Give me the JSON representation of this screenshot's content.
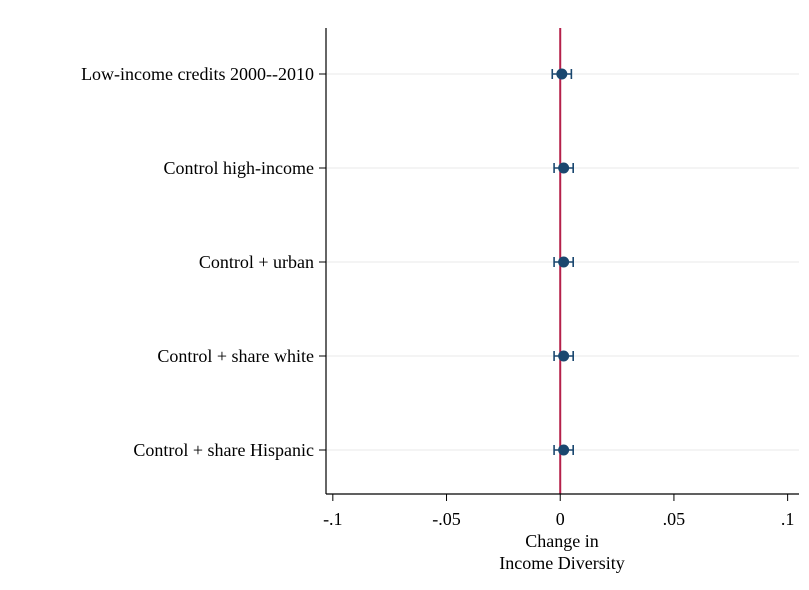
{
  "chart_data": {
    "type": "scatter",
    "orientation": "horizontal coefficient plot",
    "categories": [
      "Low-income credits 2000--2010",
      "Control high-income",
      "Control + urban",
      "Control + share white",
      "Control + share Hispanic"
    ],
    "estimates": [
      0.0007,
      0.0015,
      0.0015,
      0.0015,
      0.0015
    ],
    "ci_low": [
      -0.0035,
      -0.0027,
      -0.0027,
      -0.0027,
      -0.0027
    ],
    "ci_high": [
      0.0049,
      0.0057,
      0.0057,
      0.0057,
      0.0057
    ],
    "xlabel": [
      "Change in",
      "Income Diversity"
    ],
    "xlim": [
      -0.103,
      0.105
    ],
    "xticks": [
      -0.1,
      -0.05,
      0,
      0.05,
      0.1
    ],
    "xtick_labels": [
      "-.1",
      "-.05",
      "0",
      ".05",
      ".1"
    ],
    "reference_line_x": 0,
    "grid": "horizontal lines at categories",
    "colors": {
      "marker": "#1a476f",
      "reference_line": "#b5204a",
      "grid": "#eaeaea",
      "axis": "#000000"
    }
  }
}
